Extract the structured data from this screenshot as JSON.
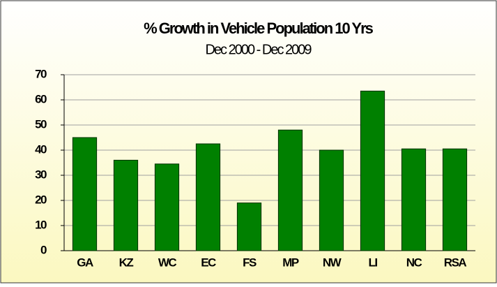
{
  "chart_data": {
    "type": "bar",
    "title": "% Growth in Vehicle Population 10 Yrs",
    "subtitle": "Dec 2000 - Dec 2009",
    "categories": [
      "GA",
      "KZ",
      "WC",
      "EC",
      "FS",
      "MP",
      "NW",
      "LI",
      "NC",
      "RSA"
    ],
    "values": [
      45,
      36,
      34.5,
      42.5,
      19,
      48,
      40,
      63.5,
      40.5,
      40.5
    ],
    "color": "#008000",
    "ylim": [
      0,
      70
    ],
    "yticks": [
      0,
      10,
      20,
      30,
      40,
      50,
      60,
      70
    ],
    "grid": true
  }
}
